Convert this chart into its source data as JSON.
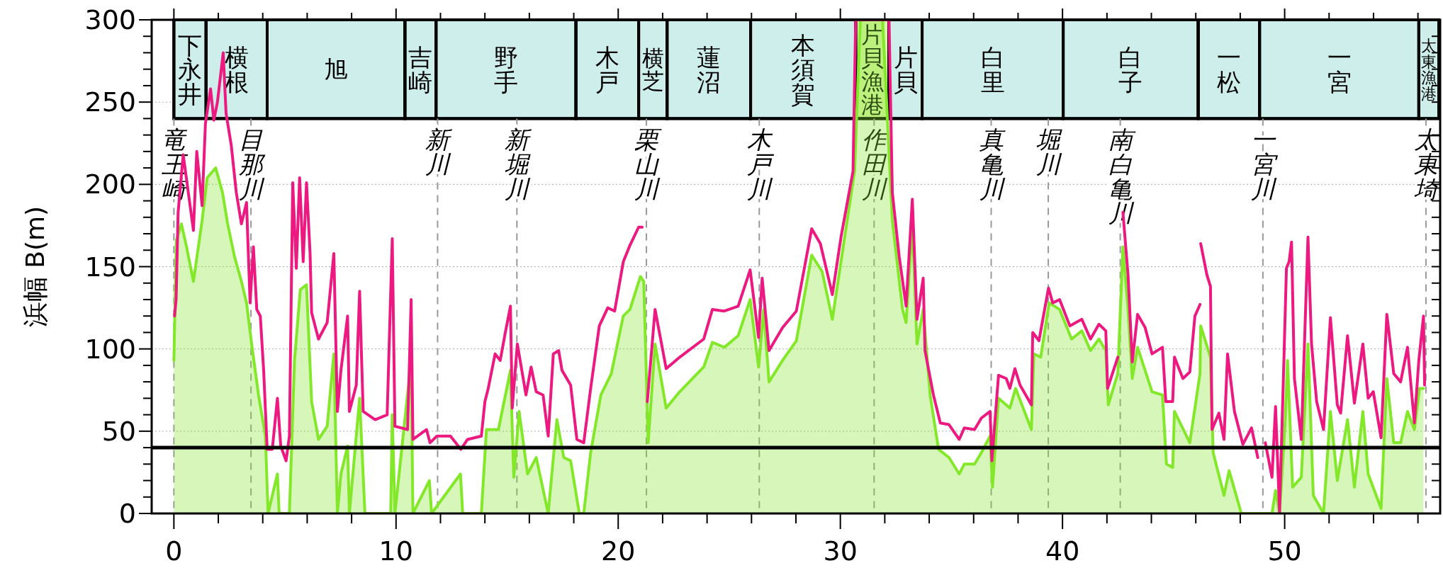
{
  "chart_data": {
    "type": "line",
    "ylabel": "浜幅 B(m)",
    "xlim": [
      -1,
      57
    ],
    "ylim": [
      0,
      300
    ],
    "xticks": [
      0,
      {
        "value": 2,
        "label": null
      },
      {
        "value": 4,
        "label": null
      },
      {
        "value": 6,
        "label": null
      },
      {
        "value": 8,
        "label": null
      },
      10,
      {
        "value": 12,
        "label": null
      },
      {
        "value": 14,
        "label": null
      },
      {
        "value": 16,
        "label": null
      },
      {
        "value": 18,
        "label": null
      },
      20,
      {
        "value": 22,
        "label": null
      },
      {
        "value": 24,
        "label": null
      },
      {
        "value": 26,
        "label": null
      },
      {
        "value": 28,
        "label": null
      },
      30,
      {
        "value": 32,
        "label": null
      },
      {
        "value": 34,
        "label": null
      },
      {
        "value": 36,
        "label": null
      },
      {
        "value": 38,
        "label": null
      },
      40,
      {
        "value": 42,
        "label": null
      },
      {
        "value": 44,
        "label": null
      },
      {
        "value": 46,
        "label": null
      },
      {
        "value": 48,
        "label": null
      },
      50,
      {
        "value": 52,
        "label": null
      },
      {
        "value": 54,
        "label": null
      },
      {
        "value": 56,
        "label": null
      }
    ],
    "yticks": [
      0,
      {
        "value": 10,
        "label": null
      },
      {
        "value": 20,
        "label": null
      },
      {
        "value": 30,
        "label": null
      },
      {
        "value": 40,
        "label": null
      },
      50,
      {
        "value": 60,
        "label": null
      },
      {
        "value": 70,
        "label": null
      },
      {
        "value": 80,
        "label": null
      },
      {
        "value": 90,
        "label": null
      },
      100,
      {
        "value": 110,
        "label": null
      },
      {
        "value": 120,
        "label": null
      },
      {
        "value": 130,
        "label": null
      },
      {
        "value": 140,
        "label": null
      },
      150,
      {
        "value": 160,
        "label": null
      },
      {
        "value": 170,
        "label": null
      },
      {
        "value": 180,
        "label": null
      },
      {
        "value": 190,
        "label": null
      },
      200,
      {
        "value": 210,
        "label": null
      },
      {
        "value": 220,
        "label": null
      },
      {
        "value": 230,
        "label": null
      },
      {
        "value": 240,
        "label": null
      },
      250,
      {
        "value": 260,
        "label": null
      },
      {
        "value": 270,
        "label": null
      },
      {
        "value": 280,
        "label": null
      },
      {
        "value": 290,
        "label": null
      },
      300
    ],
    "grid": "y",
    "series": [
      {
        "type": "area",
        "color": "#84e82a",
        "x": [
          0,
          0.11,
          0.34,
          0.57,
          0.88,
          1.27,
          1.5,
          1.88,
          2.19,
          2.42,
          2.73,
          3.04,
          3.27,
          3.5,
          3.81,
          4.12,
          4.24,
          4.66,
          4.74,
          5.2,
          5.43,
          5.69,
          5.97,
          6.2,
          6.51,
          6.9,
          7.2,
          7.36,
          7.52,
          7.82,
          7.9,
          8.36,
          8.6,
          9.76,
          9.83,
          9.95,
          10.68,
          10.76,
          11.5,
          11.6,
          12.9,
          13.0,
          13.84,
          14.07,
          14.61,
          15.15,
          15.3,
          15.54,
          15.92,
          16.31,
          16.85,
          17.24,
          17.55,
          17.86,
          18.25,
          18.45,
          18.76,
          19.22,
          19.69,
          20.23,
          20.53,
          21.0,
          21.15,
          21.35,
          21.66,
          22.16,
          22.77,
          23.85,
          24.24,
          24.78,
          25.4,
          25.94,
          26.32,
          26.55,
          26.79,
          27.4,
          28.02,
          28.71,
          29.18,
          29.64,
          30.03,
          30.64,
          30.9,
          31.9,
          32.34,
          32.8,
          32.96,
          33.24,
          33.45,
          33.73,
          34.04,
          34.42,
          34.89,
          35.35,
          35.58,
          36.04,
          36.35,
          36.74,
          36.85,
          37.12,
          37.63,
          37.89,
          38.6,
          38.71,
          39.02,
          39.4,
          39.87,
          40.41,
          40.87,
          41.26,
          41.64,
          41.95,
          42.06,
          42.49,
          42.72,
          42.95,
          43.14,
          43.38,
          44.03,
          44.5,
          44.68,
          44.96,
          45.04,
          45.73,
          46.19,
          46.22,
          46.66,
          46.78,
          47.27,
          47.5,
          48.05,
          49.43,
          49.59,
          49.77,
          50.02,
          50.13,
          50.36,
          50.75,
          51.05,
          51.29,
          51.75,
          52.06,
          52.37,
          52.83,
          53.14,
          53.52,
          53.76,
          54.34,
          54.6,
          54.91,
          55.22,
          55.53,
          55.84,
          56.07,
          56.25
        ],
        "values": [
          93,
          166,
          176,
          162,
          141,
          178,
          204,
          210,
          195,
          176,
          156,
          141,
          128,
          103,
          72,
          47,
          0,
          24,
          0,
          0,
          93,
          136,
          139,
          68,
          45,
          53,
          97,
          0,
          24,
          41,
          0,
          70,
          0,
          0,
          60,
          0,
          93,
          0,
          20,
          0,
          24,
          0,
          0,
          51,
          51,
          87,
          22,
          62,
          24,
          34,
          0,
          57,
          34,
          32,
          0,
          0,
          37,
          72,
          85,
          120,
          124,
          144,
          141,
          43,
          103,
          64,
          74,
          89,
          104,
          101,
          108,
          130,
          89,
          124,
          80,
          93,
          105,
          157,
          147,
          118,
          153,
          208,
          300,
          300,
          178,
          124,
          116,
          176,
          103,
          124,
          72,
          39,
          34,
          24,
          30,
          30,
          37,
          47,
          16,
          70,
          64,
          76,
          51,
          97,
          95,
          128,
          124,
          106,
          111,
          99,
          106,
          99,
          66,
          85,
          162,
          124,
          82,
          101,
          74,
          72,
          30,
          28,
          62,
          43,
          85,
          114,
          95,
          37,
          11,
          26,
          0,
          0,
          14,
          0,
          55,
          93,
          16,
          22,
          103,
          11,
          0,
          62,
          20,
          57,
          16,
          62,
          24,
          3,
          82,
          43,
          43,
          62,
          51,
          76,
          76
        ]
      },
      {
        "color": "#ec1a80",
        "x": [
          0.03,
          0.1,
          0.19,
          0.42,
          0.65,
          0.88,
          1.03,
          1.27,
          1.42,
          1.65,
          1.8,
          1.96,
          2.22,
          2.35,
          2.58,
          2.81,
          3.04,
          3.27,
          3.43,
          3.58,
          3.73,
          3.89,
          4.04,
          4.2,
          4.43,
          4.66,
          4.81,
          5.05,
          5.2,
          5.35,
          5.51,
          5.66,
          5.82,
          5.97,
          6.13,
          6.2,
          6.51,
          6.9,
          7.2,
          7.36,
          7.52,
          7.82,
          7.9,
          8.21,
          8.36,
          8.52,
          9.06,
          9.6,
          9.83,
          9.95,
          10.52,
          10.68,
          10.76,
          11.37,
          11.53,
          11.84,
          12.45,
          12.92,
          13.22,
          13.84,
          14.0,
          14.15,
          14.46,
          14.69,
          14.92,
          15.15,
          15.23,
          15.46,
          15.85,
          16.08,
          16.31,
          16.62,
          16.85,
          17.08,
          17.32,
          17.47,
          17.86,
          18.14,
          18.45,
          18.76,
          19.15,
          19.53,
          19.84,
          20.23,
          20.53,
          20.92,
          21.08,
          21.2,
          21.31,
          21.66,
          22.16,
          22.77,
          23.85,
          24.24,
          24.78,
          25.4,
          25.94,
          26.32,
          26.48,
          26.79,
          27.4,
          28.02,
          28.71,
          29.1,
          29.64,
          30.03,
          30.57,
          30.69,
          32.19,
          32.34,
          32.65,
          32.96,
          33.24,
          33.45,
          33.73,
          33.81,
          34.19,
          34.5,
          34.89,
          35.35,
          35.58,
          36.04,
          36.35,
          36.74,
          36.82,
          37.12,
          37.47,
          37.63,
          37.86,
          38.09,
          38.6,
          38.66,
          38.94,
          39.37,
          39.56,
          39.87,
          40.33,
          40.87,
          41.26,
          41.64,
          41.95,
          42.03,
          42.49,
          42.6,
          42.72,
          42.95,
          43.14,
          43.38,
          43.72,
          44.03,
          44.5,
          44.65,
          44.96,
          45.04,
          45.42,
          45.73,
          45.96,
          46.19,
          46.2,
          46.22,
          46.5,
          46.66,
          46.73,
          47.04,
          47.27,
          47.43,
          47.74,
          48.12,
          48.51,
          48.79,
          49.0,
          49.13,
          49.43,
          49.59,
          49.77,
          49.97,
          50.08,
          50.2,
          50.31,
          50.44,
          50.75,
          51.05,
          51.21,
          51.44,
          51.75,
          52.06,
          52.37,
          52.52,
          52.83,
          53.14,
          53.52,
          53.76,
          53.99,
          54.34,
          54.6,
          54.91,
          55.22,
          55.53,
          55.84,
          56.04,
          56.25,
          56.3
        ],
        "values": [
          120,
          130,
          183,
          218,
          195,
          172,
          220,
          187,
          237,
          258,
          239,
          250,
          280,
          243,
          224,
          195,
          176,
          189,
          128,
          162,
          124,
          120,
          87,
          39,
          39,
          70,
          41,
          32,
          47,
          201,
          149,
          204,
          153,
          201,
          158,
          122,
          106,
          116,
          158,
          62,
          87,
          120,
          62,
          78,
          135,
          62,
          57,
          60,
          167,
          53,
          51,
          130,
          45,
          51,
          43,
          47,
          47,
          39,
          45,
          47,
          68,
          76,
          97,
          93,
          110,
          126,
          64,
          103,
          72,
          89,
          74,
          72,
          47,
          97,
          99,
          87,
          78,
          45,
          43,
          76,
          114,
          125,
          123,
          153,
          163,
          174,
          174,
          null,
          68,
          124,
          88,
          95,
          106,
          124,
          123,
          126,
          148,
          107,
          143,
          99,
          113,
          123,
          173,
          164,
          133,
          168,
          208,
          300,
          300,
          195,
          156,
          126,
          191,
          118,
          143,
          99,
          72,
          55,
          54,
          45,
          52,
          51,
          58,
          62,
          32,
          84,
          82,
          76,
          88,
          78,
          66,
          110,
          105,
          137,
          128,
          130,
          114,
          118,
          106,
          115,
          111,
          76,
          95,
          null,
          183,
          145,
          92,
          121,
          113,
          97,
          101,
          68,
          68,
          95,
          82,
          86,
          120,
          127,
          null,
          164,
          145,
          138,
          51,
          61,
          45,
          97,
          62,
          42,
          52,
          34,
          null,
          43,
          22,
          65,
          1,
          95,
          149,
          153,
          165,
          82,
          45,
          168,
          103,
          68,
          51,
          119,
          66,
          61,
          108,
          67,
          103,
          70,
          74,
          46,
          121,
          85,
          80,
          101,
          55,
          93,
          120,
          78
        ]
      }
    ],
    "ref_lines": [
      {
        "axis": "y",
        "value": 40,
        "color": "#000000",
        "line_style": "solid"
      },
      {
        "axis": "x",
        "value": 0,
        "label": "竜王崎",
        "color": "#999999",
        "line_style": "dashed"
      },
      {
        "axis": "x",
        "value": 3.47,
        "label": "目那川",
        "color": "#999999",
        "line_style": "dashed"
      },
      {
        "axis": "x",
        "value": 11.87,
        "label": "新川",
        "color": "#999999",
        "line_style": "dashed"
      },
      {
        "axis": "x",
        "value": 15.44,
        "label": "新堀川",
        "color": "#999999",
        "line_style": "dashed"
      },
      {
        "axis": "x",
        "value": 21.27,
        "label": "栗山川",
        "color": "#999999",
        "line_style": "dashed"
      },
      {
        "axis": "x",
        "value": 26.35,
        "label": "木戸川",
        "color": "#999999",
        "line_style": "dashed"
      },
      {
        "axis": "x",
        "value": 31.52,
        "label": "作田川",
        "color": "#999999",
        "line_style": "dashed"
      },
      {
        "axis": "x",
        "value": 36.79,
        "label": "真亀川",
        "color": "#999999",
        "line_style": "dashed"
      },
      {
        "axis": "x",
        "value": 39.36,
        "label": "堀川",
        "color": "#999999",
        "line_style": "dashed"
      },
      {
        "axis": "x",
        "value": 42.6,
        "label": "南白亀川",
        "color": "#999999",
        "line_style": "dashed"
      },
      {
        "axis": "x",
        "value": 49.02,
        "label": "一宮川",
        "color": "#999999",
        "line_style": "dashed"
      },
      {
        "axis": "x",
        "value": 56.36,
        "label": "太東埼",
        "color": "#999999",
        "line_style": "dashed"
      }
    ],
    "bands": [
      {
        "axis": "x",
        "from": 0,
        "to": 1.45,
        "label": "下永井",
        "color": "#cdeeea"
      },
      {
        "axis": "x",
        "from": 1.45,
        "to": 4.2,
        "label": "横根",
        "color": "#cdeeea"
      },
      {
        "axis": "x",
        "from": 4.2,
        "to": 10.4,
        "label": "旭",
        "color": "#cdeeea"
      },
      {
        "axis": "x",
        "from": 10.4,
        "to": 11.8,
        "label": "吉崎",
        "color": "#cdeeea"
      },
      {
        "axis": "x",
        "from": 11.8,
        "to": 18.1,
        "label": "野手",
        "color": "#cdeeea"
      },
      {
        "axis": "x",
        "from": 18.1,
        "to": 20.92,
        "label": "木戸",
        "color": "#cdeeea"
      },
      {
        "axis": "x",
        "from": 20.92,
        "to": 22.2,
        "label": "横芝",
        "color": "#cdeeea"
      },
      {
        "axis": "x",
        "from": 22.2,
        "to": 25.96,
        "label": "蓮沼",
        "color": "#cdeeea"
      },
      {
        "axis": "x",
        "from": 25.96,
        "to": 30.69,
        "label": "本須賀",
        "color": "#cdeeea"
      },
      {
        "axis": "x",
        "from": 30.69,
        "to": 32.18,
        "label": "片貝漁港",
        "color": "#d9f7a8"
      },
      {
        "axis": "x",
        "from": 32.18,
        "to": 33.68,
        "label": "片貝",
        "color": "#cdeeea"
      },
      {
        "axis": "x",
        "from": 33.68,
        "to": 40.03,
        "label": "白里",
        "color": "#cdeeea"
      },
      {
        "axis": "x",
        "from": 40.03,
        "to": 46.11,
        "label": "白子",
        "color": "#cdeeea"
      },
      {
        "axis": "x",
        "from": 46.11,
        "to": 48.87,
        "label": "一松",
        "color": "#cdeeea"
      },
      {
        "axis": "x",
        "from": 48.87,
        "to": 56.04,
        "label": "一宮",
        "color": "#cdeeea"
      },
      {
        "axis": "x",
        "from": 56.04,
        "to": 56.94,
        "label": "太東漁港",
        "color": "#cdeeea"
      }
    ]
  }
}
